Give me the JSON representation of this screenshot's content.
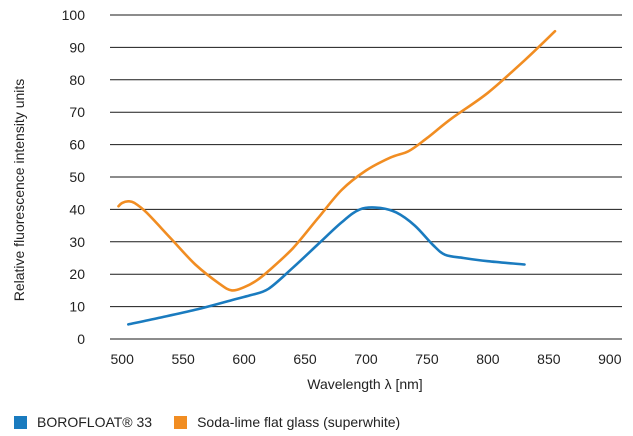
{
  "chart_data": {
    "type": "line",
    "xlabel": "Wavelength λ [nm]",
    "ylabel": "Relative fluorescence intensity units",
    "xlim": [
      490,
      910
    ],
    "ylim": [
      0,
      100
    ],
    "xticks": [
      "500",
      "550",
      "600",
      "650",
      "700",
      "750",
      "800",
      "850",
      "900"
    ],
    "yticks": [
      "0",
      "10",
      "20",
      "30",
      "40",
      "50",
      "60",
      "70",
      "80",
      "90",
      "100"
    ],
    "grid": "horizontal",
    "legend_position": "bottom-left",
    "series": [
      {
        "name": "BOROFLOAT® 33",
        "color": "#1a7bbf",
        "x": [
          505,
          530,
          560,
          590,
          605,
          620,
          640,
          660,
          680,
          695,
          710,
          725,
          740,
          755,
          765,
          780,
          800,
          830
        ],
        "y": [
          4.5,
          6.5,
          9,
          12,
          13.5,
          15.5,
          22,
          29,
          36,
          40,
          40.5,
          39,
          35,
          29,
          26,
          25,
          24,
          23
        ]
      },
      {
        "name": "Soda-lime flat glass (superwhite)",
        "color": "#f18d22",
        "x": [
          497,
          500,
          505,
          510,
          520,
          540,
          560,
          580,
          590,
          600,
          610,
          620,
          640,
          660,
          680,
          700,
          720,
          735,
          750,
          770,
          800,
          830,
          855
        ],
        "y": [
          41,
          42,
          42.5,
          42,
          39,
          31,
          23,
          17,
          15,
          16,
          18,
          21,
          28,
          37,
          46,
          52,
          56,
          58,
          62,
          68,
          76,
          86,
          95
        ]
      }
    ]
  }
}
